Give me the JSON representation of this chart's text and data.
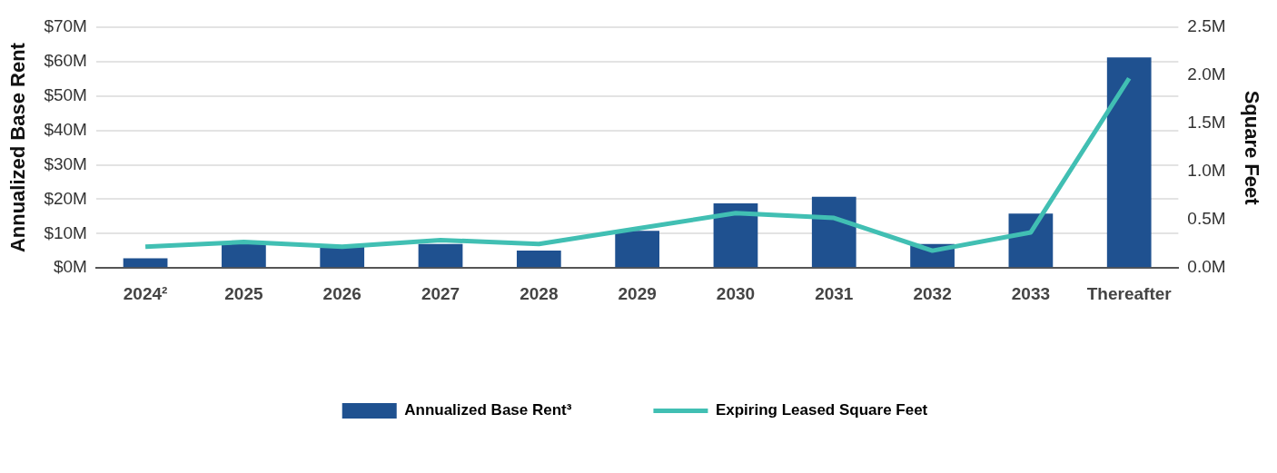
{
  "chart_data": {
    "type": "bar",
    "ylabel": "Annualized Base Rent",
    "y2label": "Square Feet",
    "categories": [
      "2024²",
      "2025",
      "2026",
      "2027",
      "2028",
      "2029",
      "2030",
      "2031",
      "2032",
      "2033",
      "Thereafter"
    ],
    "series": [
      {
        "name": "Annualized Base Rent³",
        "color": "#1f5190",
        "values": [
          2.8,
          7.0,
          6.4,
          7.0,
          5.1,
          10.8,
          18.8,
          20.7,
          7.0,
          15.8,
          61.2
        ]
      },
      {
        "name": "Expiring Leased Square Feet",
        "type": "line",
        "axis": "y2",
        "color": "#41bfb3",
        "marker": "none",
        "values": [
          0.22,
          0.27,
          0.22,
          0.29,
          0.25,
          0.41,
          0.57,
          0.52,
          0.18,
          0.37,
          1.97
        ]
      }
    ],
    "ylim": [
      0,
      70
    ],
    "yticks": [
      {
        "value": 0,
        "label": "$0M"
      },
      {
        "value": 10,
        "label": "$10M"
      },
      {
        "value": 20,
        "label": "$20M"
      },
      {
        "value": 30,
        "label": "$30M"
      },
      {
        "value": 40,
        "label": "$40M"
      },
      {
        "value": 50,
        "label": "$50M"
      },
      {
        "value": 60,
        "label": "$60M"
      },
      {
        "value": 70,
        "label": "$70M"
      }
    ],
    "y2lim": [
      0,
      2.5
    ],
    "y2ticks": [
      {
        "value": 0,
        "label": "0.0M"
      },
      {
        "value": 0.5,
        "label": "0.5M"
      },
      {
        "value": 1,
        "label": "1.0M"
      },
      {
        "value": 1.5,
        "label": "1.5M"
      },
      {
        "value": 2,
        "label": "2.0M"
      },
      {
        "value": 2.5,
        "label": "2.5M"
      }
    ],
    "grid": "y",
    "legend": "bottom"
  }
}
